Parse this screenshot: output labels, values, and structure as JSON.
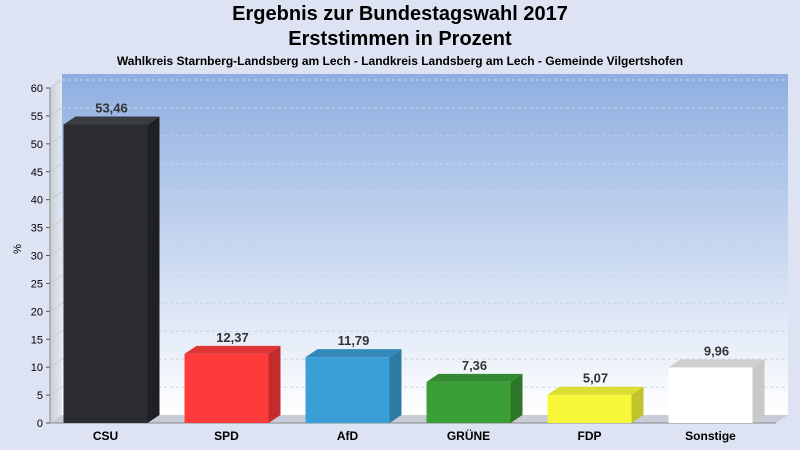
{
  "chart_data": {
    "type": "bar",
    "title": "Ergebnis zur Bundestagswahl 2017",
    "subtitle_line": "Erststimmen in Prozent",
    "subtitle": "Wahlkreis Starnberg-Landsberg am Lech - Landkreis Landsberg am Lech - Gemeinde Vilgertshofen",
    "ylabel": "%",
    "xlabel": "",
    "ylim": [
      0,
      60
    ],
    "yticks": [
      0,
      5,
      10,
      15,
      20,
      25,
      30,
      35,
      40,
      45,
      50,
      55,
      60
    ],
    "grid": true,
    "categories": [
      "CSU",
      "SPD",
      "AfD",
      "GRÜNE",
      "FDP",
      "Sonstige"
    ],
    "values": [
      53.46,
      12.37,
      11.79,
      7.36,
      5.07,
      9.96
    ],
    "value_labels": [
      "53,46",
      "12,37",
      "11,79",
      "7,36",
      "5,07",
      "9,96"
    ],
    "colors": [
      "#2b2d33",
      "#fe3b3b",
      "#3a9fd6",
      "#3b9f37",
      "#f7f73a",
      "#ffffff"
    ],
    "side_colors": [
      "#1f2024",
      "#c32c2c",
      "#2d7aa4",
      "#2c7729",
      "#c2c22c",
      "#c8c8c8"
    ],
    "top_colors": [
      "#3a3c44",
      "#e03535",
      "#3489ba",
      "#338a30",
      "#dcdc33",
      "#cfcfcf"
    ]
  }
}
